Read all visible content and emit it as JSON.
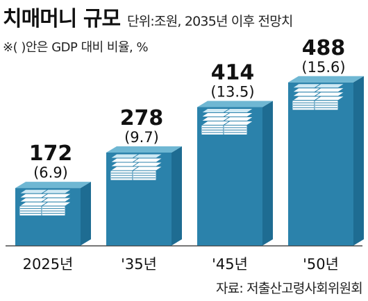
{
  "header": {
    "title": "치매머니 규모",
    "unit": "단위:조원, 2035년 이후 전망치",
    "note": "※(  )안은 GDP 대비 비율, %"
  },
  "source": "자료: 저출산고령사회위원회",
  "chart_data": {
    "type": "bar",
    "categories": [
      "2025년",
      "'35년",
      "'45년",
      "'50년"
    ],
    "values": [
      172,
      278,
      414,
      488
    ],
    "ratio_labels": [
      "(6.9)",
      "(9.7)",
      "(13.5)",
      "(15.6)"
    ],
    "value_labels": [
      "172",
      "278",
      "414",
      "488"
    ],
    "ylim": [
      0,
      500
    ],
    "grid": false,
    "colors": {
      "bar_top": "#6fb7d3",
      "bar_front": "#2b82ab",
      "bar_side": "#1e6c92",
      "stack_top": "#cfe9f4",
      "stack_page": "#ffffff",
      "stack_line": "#2b82ab",
      "axis": "#444444"
    }
  }
}
